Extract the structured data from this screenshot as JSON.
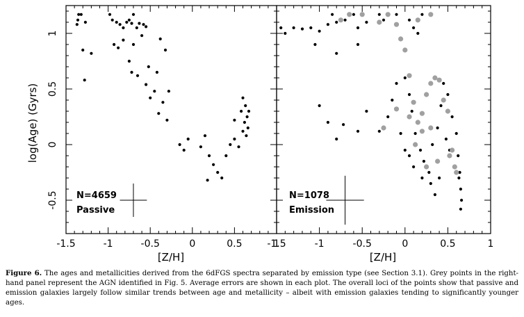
{
  "caption": {
    "label": "Figure 6.",
    "text": "The ages and metallicities derived from the 6dFGS spectra separated by emission type (see Section 3.1). Grey points in the right-hand panel represent the AGN identified in Fig. 5. Average errors are shown in each plot. The overall loci of the points show that passive and emission galaxies largely follow similar trends between age and metallicity – albeit with emission galaxies tending to significantly younger ages."
  },
  "chart_data": [
    {
      "type": "scatter",
      "panel": "left",
      "title": "",
      "xlabel": "[Z/H]",
      "ylabel": "log(Age) (Gyrs)",
      "xlim": [
        -1.5,
        1.0
      ],
      "ylim": [
        -0.8,
        1.25
      ],
      "x_ticks": [
        "-1.5",
        "-1",
        "-0.5",
        "0",
        "0.5",
        "1"
      ],
      "y_ticks": [
        "-0.5",
        "0",
        "0.5",
        "1"
      ],
      "annotation_count": "N=4659",
      "annotation_type": "Passive",
      "error_bar": {
        "x": -0.7,
        "y": -0.5,
        "xerr": 0.16,
        "yerr": 0.15
      },
      "colors": {
        "points": "#000000"
      },
      "series": [
        {
          "color": "black",
          "points": [
            [
              -1.35,
              1.17
            ],
            [
              -1.32,
              1.17
            ],
            [
              -1.36,
              1.12
            ],
            [
              -1.37,
              1.08
            ],
            [
              -1.27,
              1.1
            ],
            [
              -1.3,
              0.85
            ],
            [
              -1.28,
              0.58
            ],
            [
              -1.2,
              0.82
            ],
            [
              -0.98,
              1.17
            ],
            [
              -0.95,
              1.12
            ],
            [
              -0.9,
              1.1
            ],
            [
              -0.86,
              1.08
            ],
            [
              -0.82,
              1.05
            ],
            [
              -0.78,
              1.1
            ],
            [
              -0.75,
              1.12
            ],
            [
              -0.72,
              1.09
            ],
            [
              -0.7,
              1.17
            ],
            [
              -0.66,
              1.05
            ],
            [
              -0.63,
              1.09
            ],
            [
              -0.58,
              1.08
            ],
            [
              -0.55,
              1.06
            ],
            [
              -0.93,
              0.9
            ],
            [
              -0.88,
              0.87
            ],
            [
              -0.82,
              0.94
            ],
            [
              -0.7,
              0.9
            ],
            [
              -0.6,
              0.98
            ],
            [
              -0.75,
              0.75
            ],
            [
              -0.72,
              0.65
            ],
            [
              -0.65,
              0.62
            ],
            [
              -0.55,
              0.54
            ],
            [
              -0.52,
              0.7
            ],
            [
              -0.5,
              0.42
            ],
            [
              -0.45,
              0.48
            ],
            [
              -0.42,
              0.65
            ],
            [
              -0.4,
              0.28
            ],
            [
              -0.35,
              0.38
            ],
            [
              -0.3,
              0.22
            ],
            [
              -0.28,
              0.48
            ],
            [
              -0.32,
              0.85
            ],
            [
              -0.38,
              0.95
            ],
            [
              -0.15,
              0.0
            ],
            [
              -0.1,
              -0.05
            ],
            [
              -0.05,
              0.05
            ],
            [
              0.1,
              -0.02
            ],
            [
              0.15,
              0.08
            ],
            [
              0.2,
              -0.1
            ],
            [
              0.25,
              -0.18
            ],
            [
              0.3,
              -0.25
            ],
            [
              0.35,
              -0.3
            ],
            [
              0.18,
              -0.32
            ],
            [
              0.4,
              -0.1
            ],
            [
              0.45,
              0.0
            ],
            [
              0.5,
              0.05
            ],
            [
              0.55,
              -0.02
            ],
            [
              0.6,
              0.12
            ],
            [
              0.62,
              0.2
            ],
            [
              0.65,
              0.25
            ],
            [
              0.67,
              0.3
            ],
            [
              0.63,
              0.35
            ],
            [
              0.6,
              0.42
            ],
            [
              0.58,
              0.3
            ],
            [
              0.66,
              0.15
            ],
            [
              0.64,
              0.08
            ],
            [
              0.5,
              0.22
            ]
          ]
        }
      ]
    },
    {
      "type": "scatter",
      "panel": "right",
      "title": "",
      "xlabel": "[Z/H]",
      "ylabel": "",
      "xlim": [
        -1.5,
        1.0
      ],
      "ylim": [
        -0.8,
        1.25
      ],
      "x_ticks": [
        "-1.5",
        "-1",
        "-0.5",
        "0",
        "0.5",
        "1"
      ],
      "annotation_count": "N=1078",
      "annotation_type": "Emission",
      "error_bar": {
        "x": -0.7,
        "y": -0.5,
        "xerr": 0.22,
        "yerr": 0.22
      },
      "colors": {
        "emission": "#000000",
        "agn": "#a0a0a0"
      },
      "series": [
        {
          "color": "black",
          "points": [
            [
              -1.45,
              1.05
            ],
            [
              -1.4,
              1.0
            ],
            [
              -1.3,
              1.05
            ],
            [
              -1.2,
              1.04
            ],
            [
              -1.1,
              1.05
            ],
            [
              -1.0,
              1.02
            ],
            [
              -0.9,
              1.08
            ],
            [
              -0.85,
              1.17
            ],
            [
              -0.8,
              1.1
            ],
            [
              -0.7,
              1.12
            ],
            [
              -0.6,
              1.17
            ],
            [
              -0.55,
              1.05
            ],
            [
              -0.45,
              1.1
            ],
            [
              -0.3,
              1.17
            ],
            [
              -0.25,
              1.12
            ],
            [
              -0.1,
              1.17
            ],
            [
              0.05,
              1.12
            ],
            [
              0.1,
              1.05
            ],
            [
              0.15,
              1.0
            ],
            [
              0.2,
              1.17
            ],
            [
              -1.05,
              0.9
            ],
            [
              -0.8,
              0.82
            ],
            [
              -0.55,
              0.9
            ],
            [
              -1.0,
              0.35
            ],
            [
              -0.9,
              0.2
            ],
            [
              -0.72,
              0.18
            ],
            [
              -0.55,
              0.12
            ],
            [
              -0.8,
              0.05
            ],
            [
              -0.45,
              0.3
            ],
            [
              -0.3,
              0.12
            ],
            [
              -0.2,
              0.25
            ],
            [
              -0.15,
              0.4
            ],
            [
              -0.1,
              0.55
            ],
            [
              0.0,
              0.6
            ],
            [
              0.05,
              0.45
            ],
            [
              0.08,
              0.3
            ],
            [
              0.12,
              0.1
            ],
            [
              0.18,
              -0.05
            ],
            [
              0.22,
              -0.15
            ],
            [
              0.28,
              -0.25
            ],
            [
              0.32,
              0.0
            ],
            [
              0.38,
              0.15
            ],
            [
              0.42,
              0.35
            ],
            [
              0.45,
              0.55
            ],
            [
              0.5,
              0.45
            ],
            [
              0.55,
              0.25
            ],
            [
              0.6,
              0.1
            ],
            [
              0.62,
              -0.1
            ],
            [
              0.64,
              -0.25
            ],
            [
              0.65,
              -0.4
            ],
            [
              0.66,
              -0.5
            ],
            [
              0.65,
              -0.58
            ],
            [
              0.63,
              -0.3
            ],
            [
              0.58,
              -0.2
            ],
            [
              0.52,
              -0.05
            ],
            [
              0.48,
              0.05
            ],
            [
              0.4,
              -0.3
            ],
            [
              0.35,
              -0.45
            ],
            [
              0.3,
              -0.35
            ],
            [
              0.2,
              -0.3
            ],
            [
              0.1,
              -0.2
            ],
            [
              0.05,
              -0.1
            ],
            [
              0.0,
              -0.05
            ],
            [
              -0.05,
              0.1
            ]
          ]
        },
        {
          "color": "grey",
          "points": [
            [
              -0.75,
              1.12
            ],
            [
              -0.65,
              1.17
            ],
            [
              -0.5,
              1.17
            ],
            [
              -0.3,
              1.1
            ],
            [
              -0.2,
              1.17
            ],
            [
              0.15,
              1.12
            ],
            [
              0.3,
              1.17
            ],
            [
              -0.1,
              1.08
            ],
            [
              -0.05,
              0.95
            ],
            [
              0.0,
              0.85
            ],
            [
              -0.25,
              0.15
            ],
            [
              -0.1,
              0.32
            ],
            [
              0.05,
              0.25
            ],
            [
              0.1,
              0.38
            ],
            [
              0.15,
              0.2
            ],
            [
              0.2,
              0.28
            ],
            [
              0.25,
              0.45
            ],
            [
              0.3,
              0.55
            ],
            [
              0.35,
              0.6
            ],
            [
              0.4,
              0.58
            ],
            [
              0.45,
              0.4
            ],
            [
              0.5,
              0.3
            ],
            [
              0.55,
              -0.05
            ],
            [
              0.58,
              -0.2
            ],
            [
              0.6,
              -0.25
            ],
            [
              0.52,
              -0.1
            ],
            [
              0.38,
              -0.15
            ],
            [
              0.25,
              -0.2
            ],
            [
              0.12,
              0.0
            ],
            [
              0.2,
              0.12
            ],
            [
              0.3,
              0.15
            ],
            [
              0.05,
              0.62
            ]
          ]
        }
      ]
    }
  ]
}
